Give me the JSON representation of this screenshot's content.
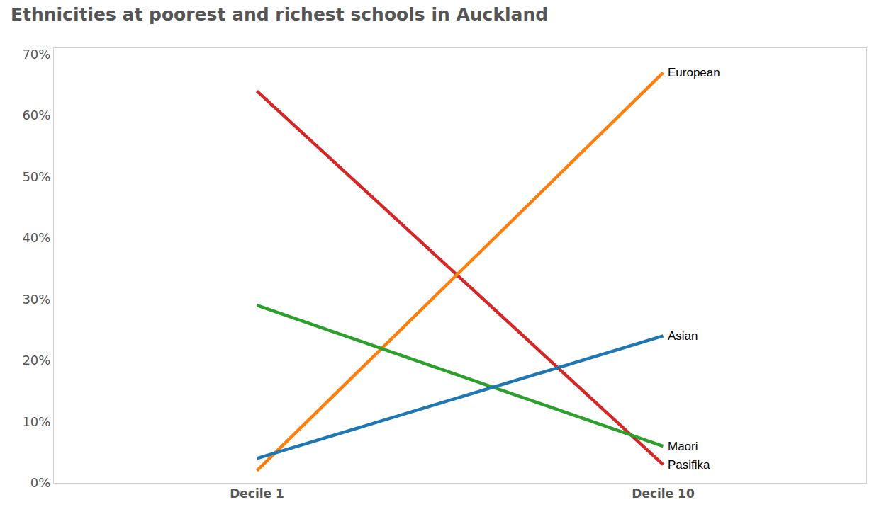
{
  "chart_data": {
    "type": "line",
    "title": "Ethnicities at poorest and richest schools in Auckland",
    "categories": [
      "Decile 1",
      "Decile 10"
    ],
    "series": [
      {
        "name": "Pasifika",
        "color": "#d62728",
        "values": [
          64,
          3
        ]
      },
      {
        "name": "European",
        "color": "#ff7f0e",
        "values": [
          2,
          67
        ]
      },
      {
        "name": "Maori",
        "color": "#2ca02c",
        "values": [
          29,
          6
        ]
      },
      {
        "name": "Asian",
        "color": "#1f77b4",
        "values": [
          4,
          24
        ]
      }
    ],
    "ylim": [
      0,
      71
    ],
    "yticks": [
      {
        "value": 0,
        "label": "0%"
      },
      {
        "value": 10,
        "label": "10%"
      },
      {
        "value": 20,
        "label": "20%"
      },
      {
        "value": 30,
        "label": "30%"
      },
      {
        "value": 40,
        "label": "40%"
      },
      {
        "value": 50,
        "label": "50%"
      },
      {
        "value": 60,
        "label": "60%"
      },
      {
        "value": 70,
        "label": "70%"
      }
    ],
    "grid": false,
    "data_labels": false
  }
}
